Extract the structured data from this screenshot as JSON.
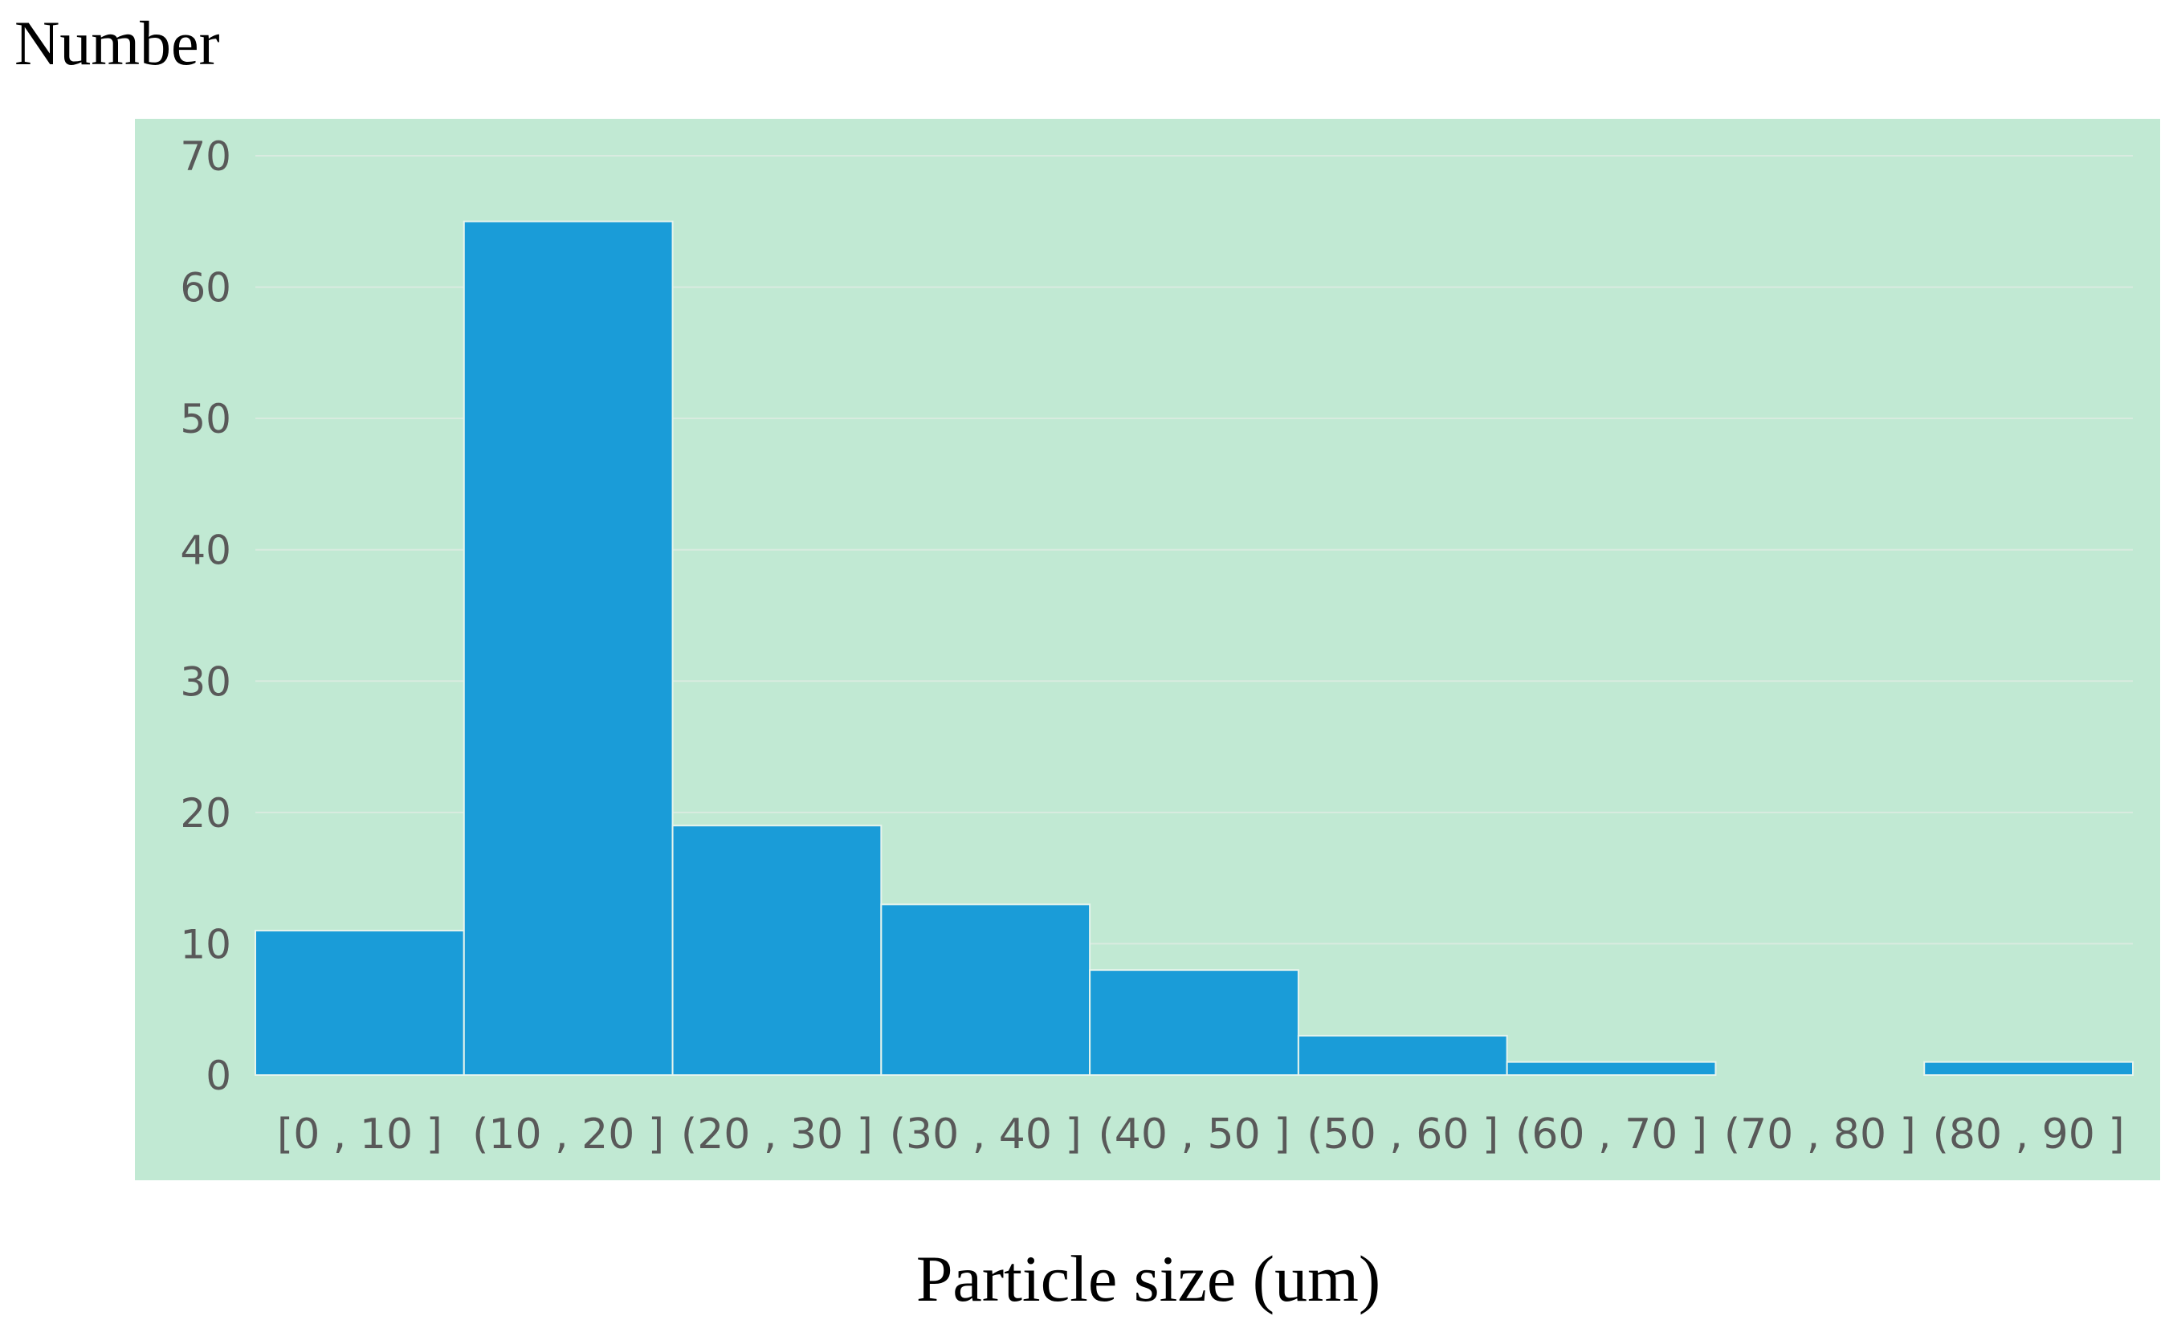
{
  "chart_data": {
    "type": "bar",
    "ylabel": "Number",
    "xlabel": "Particle size (um)",
    "categories": [
      "[0 , 10 ]",
      "(10 , 20 ]",
      "(20 , 30 ]",
      "(30 , 40 ]",
      "(40 , 50 ]",
      "(50 , 60 ]",
      "(60 , 70 ]",
      "(70 , 80 ]",
      "(80 , 90 ]"
    ],
    "values": [
      11,
      65,
      19,
      13,
      8,
      3,
      1,
      0,
      1
    ],
    "ylim": [
      0,
      70
    ],
    "yticks": [
      0,
      10,
      20,
      30,
      40,
      50,
      60,
      70
    ],
    "grid": true,
    "colors": {
      "plot_background": "#c1e9d3",
      "bar": "#1a9cd8",
      "bar_edge": "#e6f4ec",
      "gridline": "#d9ebe0",
      "tick_text": "#595959"
    }
  }
}
